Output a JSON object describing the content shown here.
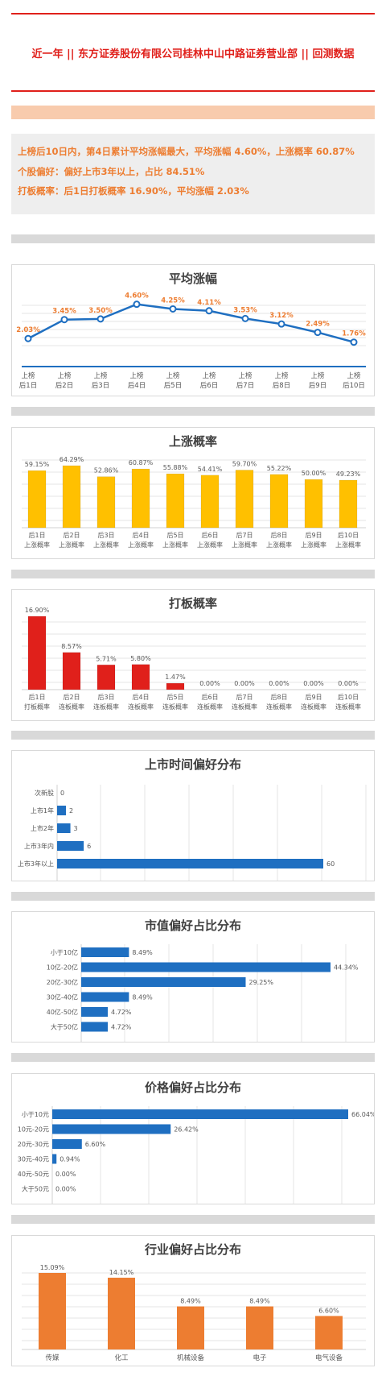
{
  "header": {
    "title": "近一年  ||  东方证券股份有限公司桂林中山中路证券营业部  ||  回测数据"
  },
  "summary": {
    "line1": "上榜后10日内，第4日累计平均涨幅最大，平均涨幅 4.60%，上涨概率 60.87%",
    "line2": "个股偏好：偏好上市3年以上，占比 84.51%",
    "line3": "打板概率：后1日打板概率 16.90%，平均涨幅 2.03%"
  },
  "colors": {
    "red": "#e0201b",
    "orange": "#ed7d31",
    "blue": "#1f6fc1",
    "gold": "#ffc000",
    "peach": "#f8cbad",
    "grey": "#d9d9d9"
  },
  "chart_data": [
    {
      "id": "avg",
      "type": "line",
      "title": "平均涨幅",
      "categories": [
        "上榜\n后1日",
        "上榜\n后2日",
        "上榜\n后3日",
        "上榜\n后4日",
        "上榜\n后5日",
        "上榜\n后6日",
        "上榜\n后7日",
        "上榜\n后8日",
        "上榜\n后9日",
        "上榜\n后10日"
      ],
      "values": [
        2.03,
        3.45,
        3.5,
        4.6,
        4.25,
        4.11,
        3.53,
        3.12,
        2.49,
        1.76
      ],
      "labels": [
        "2.03%",
        "3.45%",
        "3.50%",
        "4.60%",
        "4.25%",
        "4.11%",
        "3.53%",
        "3.12%",
        "2.49%",
        "1.76%"
      ]
    },
    {
      "id": "up",
      "type": "bar",
      "title": "上涨概率",
      "categories": [
        "后1日\n上涨概率",
        "后2日\n上涨概率",
        "后3日\n上涨概率",
        "后4日\n上涨概率",
        "后5日\n上涨概率",
        "后6日\n上涨概率",
        "后7日\n上涨概率",
        "后8日\n上涨概率",
        "后9日\n上涨概率",
        "后10日\n上涨概率"
      ],
      "values": [
        59.15,
        64.29,
        52.86,
        60.87,
        55.88,
        54.41,
        59.7,
        55.22,
        50.0,
        49.23
      ],
      "labels": [
        "59.15%",
        "64.29%",
        "52.86%",
        "60.87%",
        "55.88%",
        "54.41%",
        "59.70%",
        "55.22%",
        "50.00%",
        "49.23%"
      ]
    },
    {
      "id": "limit",
      "type": "bar",
      "title": "打板概率",
      "categories": [
        "后1日\n打板概率",
        "后2日\n连板概率",
        "后3日\n连板概率",
        "后4日\n连板概率",
        "后5日\n连板概率",
        "后6日\n连板概率",
        "后7日\n连板概率",
        "后8日\n连板概率",
        "后9日\n连板概率",
        "后10日\n连板概率"
      ],
      "values": [
        16.9,
        8.57,
        5.71,
        5.8,
        1.47,
        0,
        0,
        0,
        0,
        0
      ],
      "labels": [
        "16.90%",
        "8.57%",
        "5.71%",
        "5.80%",
        "1.47%",
        "0.00%",
        "0.00%",
        "0.00%",
        "0.00%",
        "0.00%"
      ]
    },
    {
      "id": "listing",
      "type": "bar",
      "orientation": "horizontal",
      "title": "上市时间偏好分布",
      "categories": [
        "次新股",
        "上市1年",
        "上市2年",
        "上市3年内",
        "上市3年以上"
      ],
      "values": [
        0,
        2,
        3,
        6,
        60
      ],
      "labels": [
        "0",
        "2",
        "3",
        "6",
        "60"
      ]
    },
    {
      "id": "mcap",
      "type": "bar",
      "orientation": "horizontal",
      "title": "市值偏好占比分布",
      "categories": [
        "小于10亿",
        "10亿-20亿",
        "20亿-30亿",
        "30亿-40亿",
        "40亿-50亿",
        "大于50亿"
      ],
      "values": [
        8.49,
        44.34,
        29.25,
        8.49,
        4.72,
        4.72
      ],
      "labels": [
        "8.49%",
        "44.34%",
        "29.25%",
        "8.49%",
        "4.72%",
        "4.72%"
      ]
    },
    {
      "id": "price",
      "type": "bar",
      "orientation": "horizontal",
      "title": "价格偏好占比分布",
      "categories": [
        "小于10元",
        "10元-20元",
        "20元-30元",
        "30元-40元",
        "40元-50元",
        "大于50元"
      ],
      "values": [
        66.04,
        26.42,
        6.6,
        0.94,
        0,
        0
      ],
      "labels": [
        "66.04%",
        "26.42%",
        "6.60%",
        "0.94%",
        "0.00%",
        "0.00%"
      ]
    },
    {
      "id": "industry",
      "type": "bar",
      "title": "行业偏好占比分布",
      "categories": [
        "传媒",
        "化工",
        "机械设备",
        "电子",
        "电气设备"
      ],
      "values": [
        15.09,
        14.15,
        8.49,
        8.49,
        6.6
      ],
      "labels": [
        "15.09%",
        "14.15%",
        "8.49%",
        "8.49%",
        "6.60%"
      ]
    }
  ]
}
